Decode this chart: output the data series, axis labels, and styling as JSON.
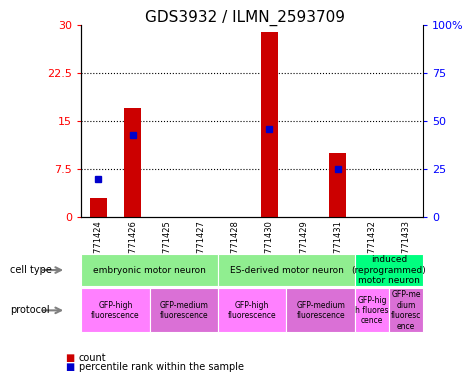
{
  "title": "GDS3932 / ILMN_2593709",
  "samples": [
    "GSM771424",
    "GSM771426",
    "GSM771425",
    "GSM771427",
    "GSM771428",
    "GSM771430",
    "GSM771429",
    "GSM771431",
    "GSM771432",
    "GSM771433"
  ],
  "counts": [
    3.0,
    17.0,
    0,
    0,
    0,
    29.0,
    0,
    10.0,
    0,
    0
  ],
  "percentile": [
    20,
    43,
    0,
    0,
    0,
    46,
    0,
    25,
    0,
    0
  ],
  "ylim_left": [
    0,
    30
  ],
  "ylim_right": [
    0,
    100
  ],
  "yticks_left": [
    0,
    7.5,
    15,
    22.5,
    30
  ],
  "yticks_right": [
    0,
    25,
    50,
    75,
    100
  ],
  "ytick_labels_left": [
    "0",
    "7.5",
    "15",
    "22.5",
    "30"
  ],
  "ytick_labels_right": [
    "0",
    "25",
    "50",
    "75",
    "100%"
  ],
  "cell_type_groups": [
    {
      "label": "embryonic motor neuron",
      "start": 0,
      "end": 3,
      "color": "#90EE90"
    },
    {
      "label": "ES-derived motor neuron",
      "start": 4,
      "end": 7,
      "color": "#90EE90"
    },
    {
      "label": "induced\n(reprogrammed)\nmotor neuron",
      "start": 8,
      "end": 9,
      "color": "#00FF7F"
    }
  ],
  "protocol_groups": [
    {
      "label": "GFP-high\nfluorescence",
      "start": 0,
      "end": 1,
      "color": "#FF80FF"
    },
    {
      "label": "GFP-medium\nfluorescence",
      "start": 2,
      "end": 3,
      "color": "#DA70D6"
    },
    {
      "label": "GFP-high\nfluorescence",
      "start": 4,
      "end": 5,
      "color": "#FF80FF"
    },
    {
      "label": "GFP-medium\nfluorescence",
      "start": 6,
      "end": 7,
      "color": "#DA70D6"
    },
    {
      "label": "GFP-hig\nh fluores\ncence",
      "start": 8,
      "end": 8,
      "color": "#FF80FF"
    },
    {
      "label": "GFP-me\ndium\nfluoresc\nence",
      "start": 9,
      "end": 9,
      "color": "#DA70D6"
    }
  ],
  "bar_color": "#CC0000",
  "dot_color": "#0000CC",
  "bar_width": 0.5,
  "background_color": "#FFFFFF",
  "title_fontsize": 11,
  "tick_fontsize": 8,
  "sample_fontsize": 6,
  "ann_fontsize": 6.5,
  "proto_fontsize": 5.5
}
